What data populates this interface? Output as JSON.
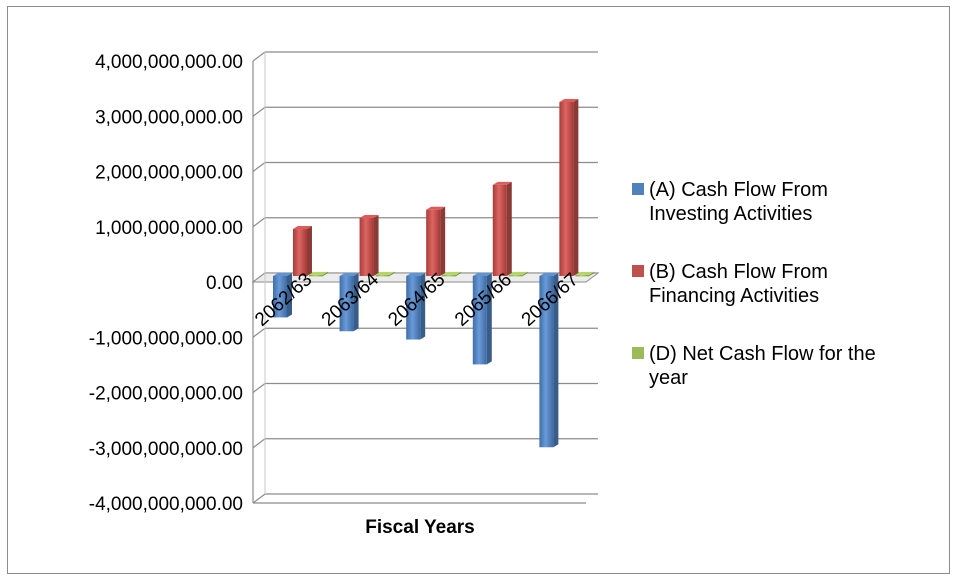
{
  "chart_data": {
    "type": "bar",
    "categories": [
      "2062/63",
      "2063/64",
      "2064/65",
      "2065/66",
      "2066/67"
    ],
    "series": [
      {
        "name": "(A) Cash Flow From Investing Activities",
        "color": "#4f81bd",
        "values": [
          -750000000,
          -1000000000,
          -1150000000,
          -1600000000,
          -3100000000
        ]
      },
      {
        "name": "(B) Cash Flow From Financing Activities",
        "color": "#c0504d",
        "values": [
          850000000,
          1050000000,
          1200000000,
          1650000000,
          3150000000
        ]
      },
      {
        "name": "(D) Net Cash Flow for the year",
        "color": "#9bbb59",
        "values": [
          20000000,
          20000000,
          20000000,
          20000000,
          20000000
        ]
      }
    ],
    "xlabel": "Fiscal Years",
    "ylabel": "",
    "ylim": [
      -4000000000,
      4000000000
    ],
    "yticks": [
      "4,000,000,000.00",
      "3,000,000,000.00",
      "2,000,000,000.00",
      "1,000,000,000.00",
      "0.00",
      "-1,000,000,000.00",
      "-2,000,000,000.00",
      "-3,000,000,000.00",
      "-4,000,000,000.00"
    ],
    "grid": true,
    "legend": "right",
    "style": "3d-clustered-column"
  }
}
